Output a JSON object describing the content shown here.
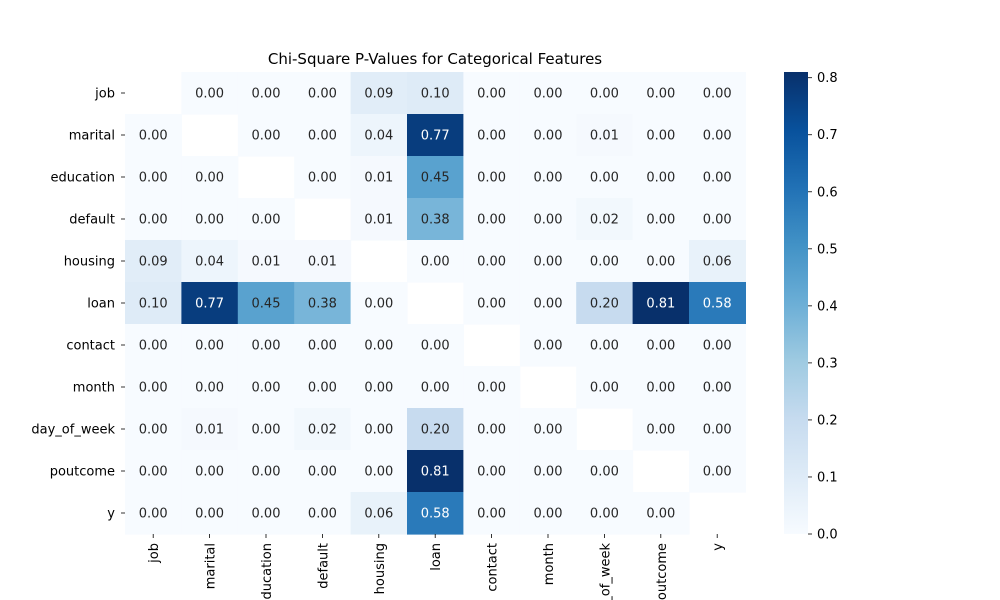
{
  "chart_data": {
    "type": "heatmap",
    "title": "Chi-Square P-Values for Categorical Features",
    "labels": [
      "job",
      "marital",
      "education",
      "default",
      "housing",
      "loan",
      "contact",
      "month",
      "day_of_week",
      "poutcome",
      "y"
    ],
    "values": [
      [
        null,
        0.0,
        0.0,
        0.0,
        0.09,
        0.1,
        0.0,
        0.0,
        0.0,
        0.0,
        0.0
      ],
      [
        0.0,
        null,
        0.0,
        0.0,
        0.04,
        0.77,
        0.0,
        0.0,
        0.01,
        0.0,
        0.0
      ],
      [
        0.0,
        0.0,
        null,
        0.0,
        0.01,
        0.45,
        0.0,
        0.0,
        0.0,
        0.0,
        0.0
      ],
      [
        0.0,
        0.0,
        0.0,
        null,
        0.01,
        0.38,
        0.0,
        0.0,
        0.02,
        0.0,
        0.0
      ],
      [
        0.09,
        0.04,
        0.01,
        0.01,
        null,
        0.0,
        0.0,
        0.0,
        0.0,
        0.0,
        0.06
      ],
      [
        0.1,
        0.77,
        0.45,
        0.38,
        0.0,
        null,
        0.0,
        0.0,
        0.2,
        0.81,
        0.58
      ],
      [
        0.0,
        0.0,
        0.0,
        0.0,
        0.0,
        0.0,
        null,
        0.0,
        0.0,
        0.0,
        0.0
      ],
      [
        0.0,
        0.0,
        0.0,
        0.0,
        0.0,
        0.0,
        0.0,
        null,
        0.0,
        0.0,
        0.0
      ],
      [
        0.0,
        0.01,
        0.0,
        0.02,
        0.0,
        0.2,
        0.0,
        0.0,
        null,
        0.0,
        0.0
      ],
      [
        0.0,
        0.0,
        0.0,
        0.0,
        0.0,
        0.81,
        0.0,
        0.0,
        0.0,
        null,
        0.0
      ],
      [
        0.0,
        0.0,
        0.0,
        0.0,
        0.06,
        0.58,
        0.0,
        0.0,
        0.0,
        0.0,
        null
      ]
    ],
    "colormap": "Blues",
    "colorbar": {
      "min": 0.0,
      "max": 0.81,
      "ticks": [
        "0.0",
        "0.1",
        "0.2",
        "0.3",
        "0.4",
        "0.5",
        "0.6",
        "0.7",
        "0.8"
      ]
    },
    "annotate_format": "0.00"
  }
}
